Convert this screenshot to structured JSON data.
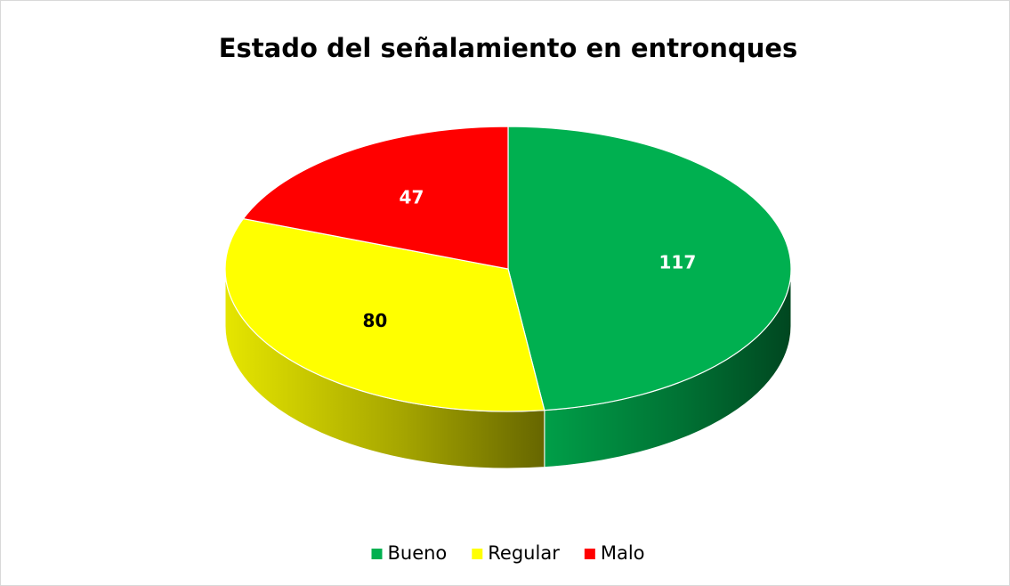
{
  "chart_data": {
    "type": "pie",
    "title": "Estado del señalamiento en entronques",
    "categories": [
      "Bueno",
      "Regular",
      "Malo"
    ],
    "values": [
      117,
      80,
      47
    ],
    "colors": [
      "#00b050",
      "#ffff00",
      "#ff0000"
    ],
    "label_colors": [
      "#ffffff",
      "#000000",
      "#ffffff"
    ],
    "legend": "bottom"
  }
}
